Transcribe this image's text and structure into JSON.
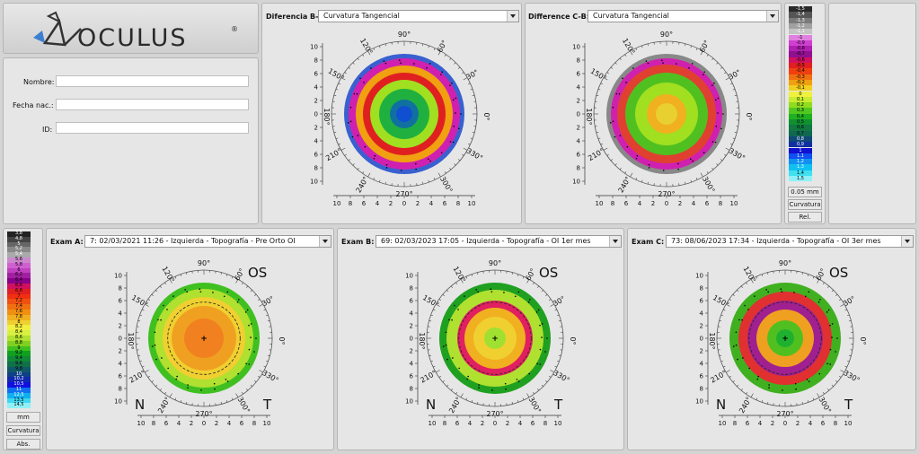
{
  "logo": {
    "brand": "OCULUS",
    "registered": "®"
  },
  "patient": {
    "fields": [
      {
        "label": "Nombre:",
        "value": ""
      },
      {
        "label": "Fecha nac.:",
        "value": ""
      },
      {
        "label": "ID:",
        "value": ""
      }
    ]
  },
  "diff_ba": {
    "label": "Diferencia B-A:",
    "value": "Curvatura Tangencial"
  },
  "diff_cb": {
    "label": "Difference C-B:",
    "value": "Curvatura Tangencial"
  },
  "exam_a": {
    "label": "Exam A:",
    "value": "7: 02/03/2021 11:26 - Izquierda - Topografía - Pre Orto OI",
    "eye": "OS",
    "nasal": "N",
    "temporal": "T"
  },
  "exam_b": {
    "label": "Exam B:",
    "value": "69: 02/03/2023 17:05 - Izquierda - Topografía - OI 1er mes",
    "eye": "OS",
    "nasal": "N",
    "temporal": "T"
  },
  "exam_c": {
    "label": "Exam C:",
    "value": "73: 08/06/2023 17:34 - Izquierda - Topografía - OI 3er mes",
    "eye": "OS",
    "nasal": "N",
    "temporal": "T"
  },
  "map_labels": {
    "axis_ticks": [
      "10",
      "8",
      "6",
      "4",
      "2",
      "0",
      "2",
      "4",
      "6",
      "8",
      "10"
    ],
    "angles": [
      "90°",
      "60°",
      "30°",
      "0°",
      "330°",
      "300°",
      "270°",
      "240°",
      "210°",
      "180°",
      "150°",
      "120°"
    ]
  },
  "diff_scale": {
    "values": [
      "-1,5",
      "-1,4",
      "-1,3",
      "-1,2",
      "-1,1",
      "-1",
      "-0,9",
      "-0,8",
      "-0,7",
      "-0,6",
      "-0,5",
      "-0,4",
      "-0,3",
      "-0,2",
      "-0,1",
      "0",
      "0,1",
      "0,2",
      "0,3",
      "0,4",
      "0,5",
      "0,6",
      "0,7",
      "0,8",
      "0,9",
      "1",
      "1,1",
      "1,2",
      "1,3",
      "1,4",
      "1,5"
    ],
    "colors": [
      "#2a2a2a",
      "#555555",
      "#7a7a7a",
      "#a0a0a0",
      "#c4c4c4",
      "#e080e0",
      "#d040d0",
      "#b020b0",
      "#901090",
      "#d01060",
      "#e02020",
      "#f04010",
      "#f07010",
      "#f0a010",
      "#f0d020",
      "#f0f040",
      "#c8ec30",
      "#90dc20",
      "#50c820",
      "#20b020",
      "#109030",
      "#107840",
      "#106850",
      "#104878",
      "#1030a0",
      "#1010d0",
      "#1050f0",
      "#1090f0",
      "#10c0f0",
      "#40e0f0",
      "#90f0f8"
    ],
    "step": "0.05 mm",
    "mode": "Curvatura",
    "type": "Rel."
  },
  "abs_scale": {
    "values": [
      "3,8",
      "4,8",
      "5",
      "5,2",
      "5,4",
      "5,6",
      "5,8",
      "6",
      "6,2",
      "6,4",
      "6,6",
      "6,8",
      "7",
      "7,2",
      "7,4",
      "7,6",
      "7,8",
      "8",
      "8,2",
      "8,4",
      "8,6",
      "8,8",
      "9",
      "9,2",
      "9,4",
      "9,6",
      "9,8",
      "10",
      "10,2",
      "10,5",
      "11",
      "12,5",
      "13,5",
      "14,5"
    ],
    "colors": [
      "#222222",
      "#444444",
      "#666666",
      "#888888",
      "#aaaaaa",
      "#cc88cc",
      "#d060d0",
      "#c040c0",
      "#a020a0",
      "#880088",
      "#d01060",
      "#e02020",
      "#f03010",
      "#f05010",
      "#f07010",
      "#f09010",
      "#f0b020",
      "#f0d030",
      "#f0f040",
      "#d8f040",
      "#b0e030",
      "#80d020",
      "#40c020",
      "#10a020",
      "#108838",
      "#107048",
      "#105868",
      "#104088",
      "#1028b0",
      "#1010e0",
      "#1070f0",
      "#10b0f0",
      "#40d8f0",
      "#90f0f8"
    ],
    "unit": "mm",
    "mode": "Curvatura",
    "type": "Abs."
  }
}
